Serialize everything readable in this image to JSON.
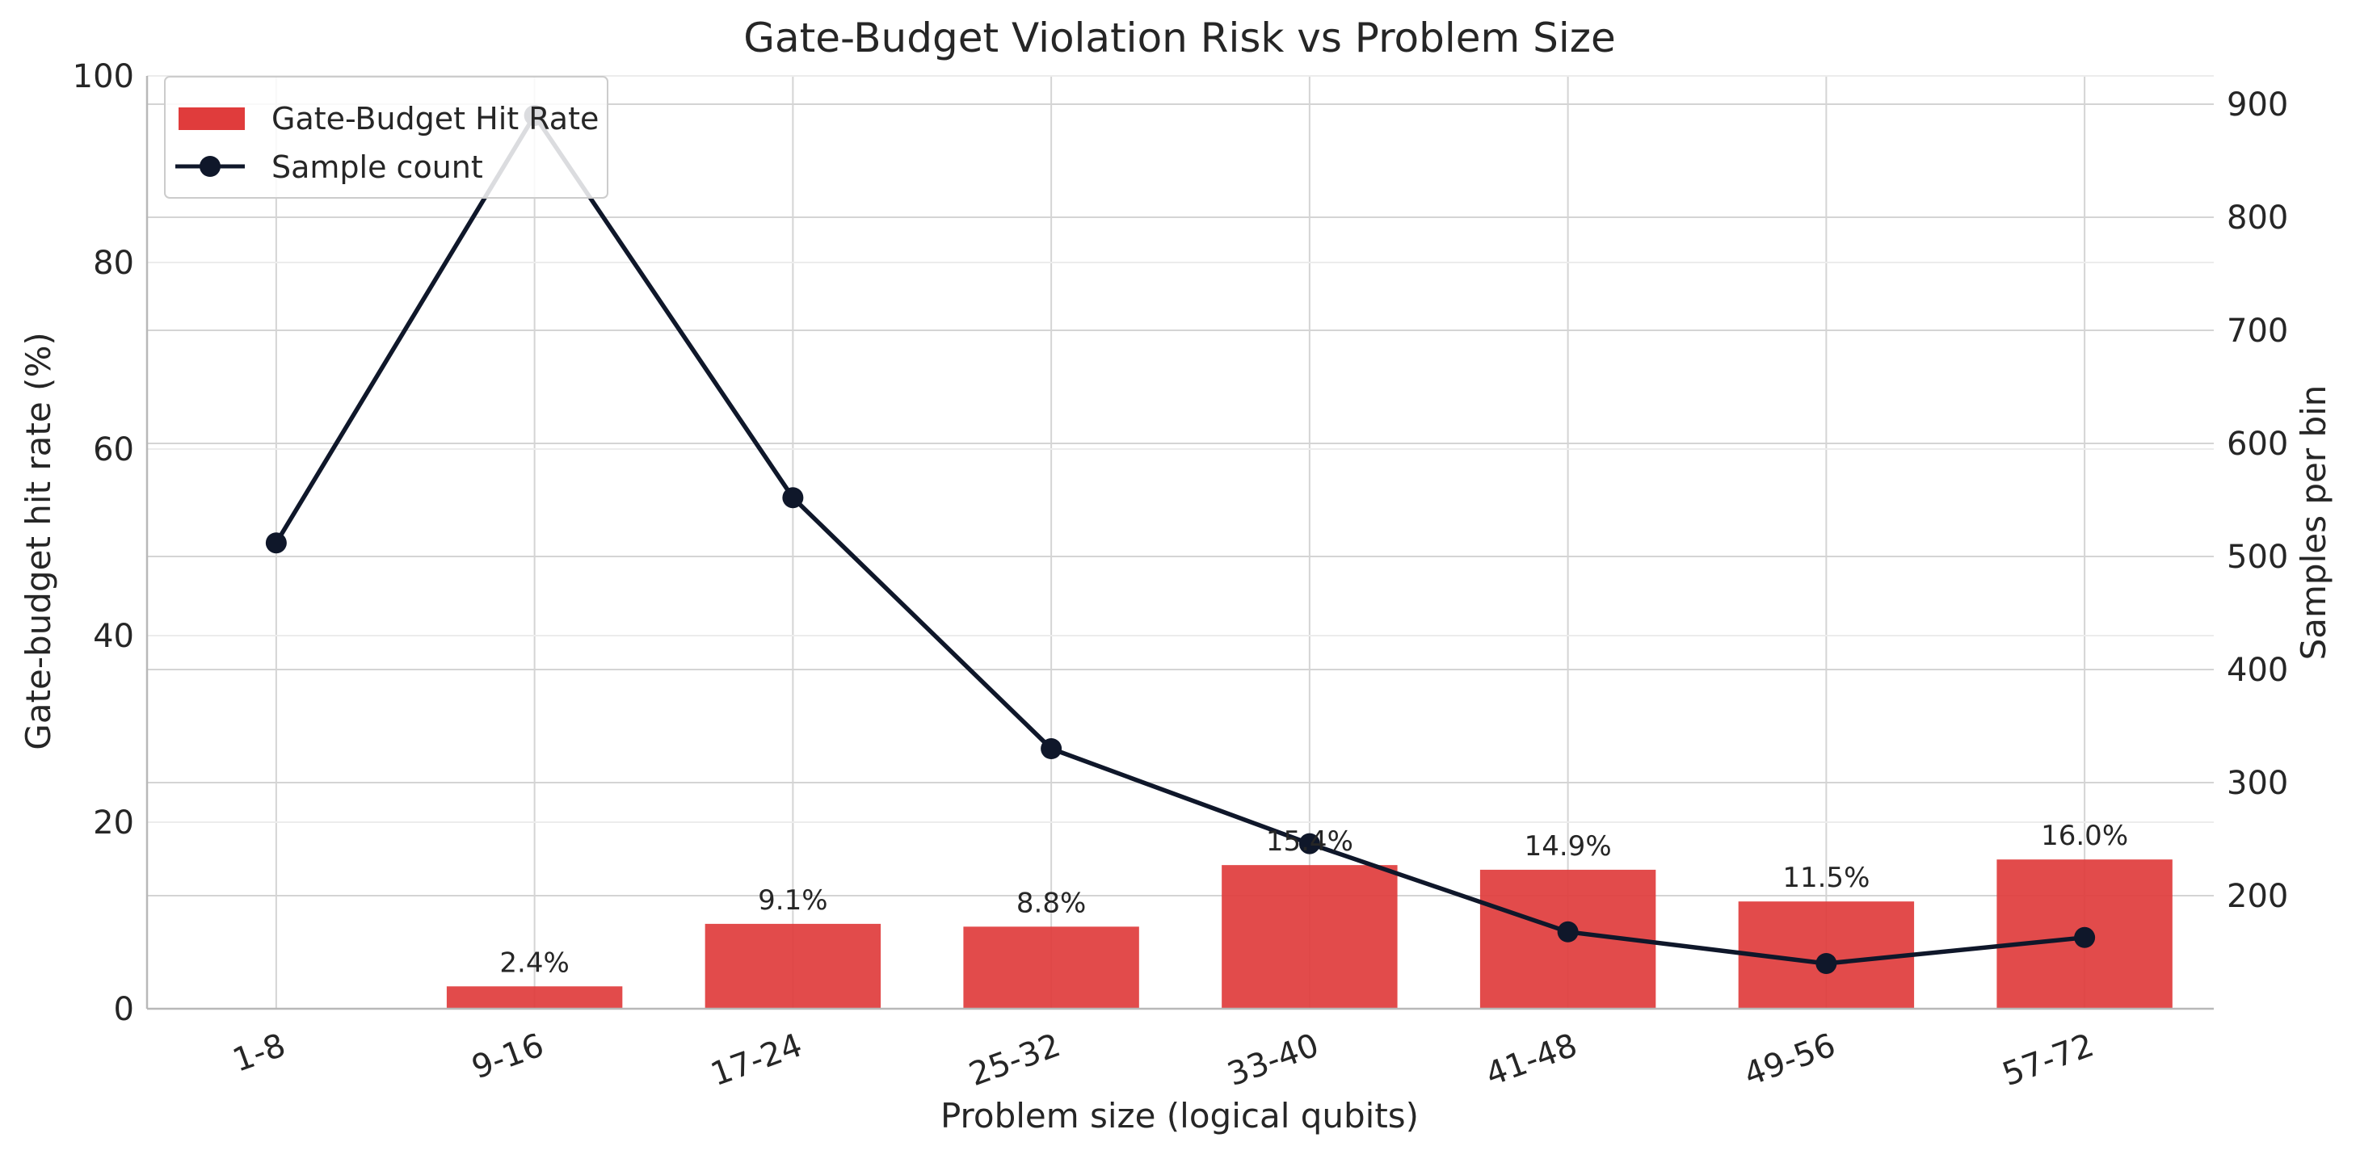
{
  "chart_data": {
    "type": "bar",
    "title": "Gate-Budget Violation Risk vs Problem Size",
    "xlabel": "Problem size (logical qubits)",
    "ylabel": "Gate-budget hit rate (%)",
    "ylabel_right": "Samples per bin",
    "categories": [
      "1-8",
      "9-16",
      "17-24",
      "25-32",
      "33-40",
      "41-48",
      "49-56",
      "57-72"
    ],
    "ylim": [
      0,
      100
    ],
    "ylim_right": [
      100,
      925
    ],
    "yticks": [
      0,
      20,
      40,
      60,
      80,
      100
    ],
    "yticks_right": [
      200,
      300,
      400,
      500,
      600,
      700,
      800,
      900
    ],
    "grid": true,
    "legend_position": "top-left",
    "series": [
      {
        "name": "Gate-Budget Hit Rate",
        "type": "bar",
        "axis": "left",
        "color": "#e03c3c",
        "values": [
          0.0,
          2.4,
          9.1,
          8.8,
          15.4,
          14.9,
          11.5,
          16.0
        ],
        "labels": [
          "",
          "2.4%",
          "9.1%",
          "8.8%",
          "15.4%",
          "14.9%",
          "11.5%",
          "16.0%"
        ]
      },
      {
        "name": "Sample count",
        "type": "line",
        "axis": "right",
        "color": "#0f172a",
        "values": [
          512,
          890,
          552,
          330,
          246,
          168,
          140,
          163
        ]
      }
    ]
  }
}
